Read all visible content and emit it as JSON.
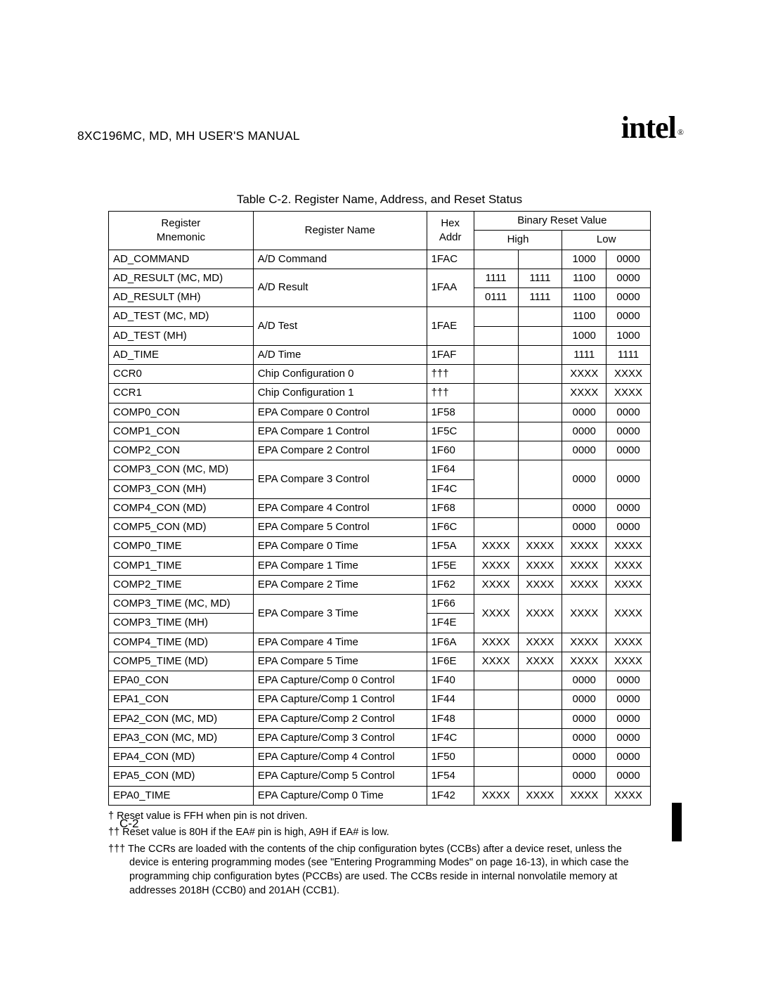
{
  "doc": {
    "header": "8XC196MC, MD, MH USER'S MANUAL",
    "logo_text": "intel",
    "logo_mark": "®"
  },
  "caption": "Table C-2.  Register Name, Address, and    Reset Status",
  "head": {
    "mnemonic": "Register\nMnemonic",
    "name": "Register Name",
    "addr": "Hex\nAddr",
    "brv": "Binary Reset Value",
    "high": "High",
    "low": "Low"
  },
  "rows": [
    {
      "m": [
        "AD_COMMAND"
      ],
      "n": "A/D Command",
      "a": [
        "1FAC"
      ],
      "h1": [
        ""
      ],
      "h2": [
        ""
      ],
      "l1": [
        "1000"
      ],
      "l2": [
        "0000"
      ]
    },
    {
      "m": [
        "AD_RESULT (MC, MD)",
        "AD_RESULT (MH)"
      ],
      "n": "A/D Result",
      "a": [
        "1FAA"
      ],
      "h1": [
        "1111",
        "0111"
      ],
      "h2": [
        "1111",
        "1111"
      ],
      "l1": [
        "1100",
        "1100"
      ],
      "l2": [
        "0000",
        "0000"
      ]
    },
    {
      "m": [
        "AD_TEST (MC, MD)",
        "AD_TEST (MH)"
      ],
      "n": "A/D Test",
      "a": [
        "1FAE"
      ],
      "h1": [
        "",
        ""
      ],
      "h2": [
        "",
        ""
      ],
      "l1": [
        "1100",
        "1000"
      ],
      "l2": [
        "0000",
        "1000"
      ]
    },
    {
      "m": [
        "AD_TIME"
      ],
      "n": "A/D Time",
      "a": [
        "1FAF"
      ],
      "h1": [
        ""
      ],
      "h2": [
        ""
      ],
      "l1": [
        "1111"
      ],
      "l2": [
        "1111"
      ]
    },
    {
      "m": [
        "CCR0"
      ],
      "n": "Chip Configuration 0",
      "a": [
        "†††"
      ],
      "h1": [
        ""
      ],
      "h2": [
        ""
      ],
      "l1": [
        "XXXX"
      ],
      "l2": [
        "XXXX"
      ]
    },
    {
      "m": [
        "CCR1"
      ],
      "n": "Chip Configuration 1",
      "a": [
        "†††"
      ],
      "h1": [
        ""
      ],
      "h2": [
        ""
      ],
      "l1": [
        "XXXX"
      ],
      "l2": [
        "XXXX"
      ]
    },
    {
      "m": [
        "COMP0_CON"
      ],
      "n": "EPA Compare 0 Control",
      "a": [
        "1F58"
      ],
      "h1": [
        ""
      ],
      "h2": [
        ""
      ],
      "l1": [
        "0000"
      ],
      "l2": [
        "0000"
      ]
    },
    {
      "m": [
        "COMP1_CON"
      ],
      "n": "EPA Compare 1 Control",
      "a": [
        "1F5C"
      ],
      "h1": [
        ""
      ],
      "h2": [
        ""
      ],
      "l1": [
        "0000"
      ],
      "l2": [
        "0000"
      ]
    },
    {
      "m": [
        "COMP2_CON"
      ],
      "n": "EPA Compare 2 Control",
      "a": [
        "1F60"
      ],
      "h1": [
        ""
      ],
      "h2": [
        ""
      ],
      "l1": [
        "0000"
      ],
      "l2": [
        "0000"
      ]
    },
    {
      "m": [
        "COMP3_CON (MC, MD)",
        "COMP3_CON (MH)"
      ],
      "n": "EPA Compare 3 Control",
      "a": [
        "1F64",
        "1F4C"
      ],
      "h1": [
        ""
      ],
      "h2": [
        ""
      ],
      "l1": [
        "0000"
      ],
      "l2": [
        "0000"
      ],
      "merge_vals": true
    },
    {
      "m": [
        "COMP4_CON (MD)"
      ],
      "n": "EPA Compare 4 Control",
      "a": [
        "1F68"
      ],
      "h1": [
        ""
      ],
      "h2": [
        ""
      ],
      "l1": [
        "0000"
      ],
      "l2": [
        "0000"
      ]
    },
    {
      "m": [
        "COMP5_CON (MD)"
      ],
      "n": "EPA Compare 5 Control",
      "a": [
        "1F6C"
      ],
      "h1": [
        ""
      ],
      "h2": [
        ""
      ],
      "l1": [
        "0000"
      ],
      "l2": [
        "0000"
      ]
    },
    {
      "m": [
        "COMP0_TIME"
      ],
      "n": "EPA Compare 0 Time",
      "a": [
        "1F5A"
      ],
      "h1": [
        "XXXX"
      ],
      "h2": [
        "XXXX"
      ],
      "l1": [
        "XXXX"
      ],
      "l2": [
        "XXXX"
      ]
    },
    {
      "m": [
        "COMP1_TIME"
      ],
      "n": "EPA Compare 1 Time",
      "a": [
        "1F5E"
      ],
      "h1": [
        "XXXX"
      ],
      "h2": [
        "XXXX"
      ],
      "l1": [
        "XXXX"
      ],
      "l2": [
        "XXXX"
      ]
    },
    {
      "m": [
        "COMP2_TIME"
      ],
      "n": "EPA Compare 2 Time",
      "a": [
        "1F62"
      ],
      "h1": [
        "XXXX"
      ],
      "h2": [
        "XXXX"
      ],
      "l1": [
        "XXXX"
      ],
      "l2": [
        "XXXX"
      ]
    },
    {
      "m": [
        "COMP3_TIME (MC, MD)",
        "COMP3_TIME (MH)"
      ],
      "n": "EPA Compare 3 Time",
      "a": [
        "1F66",
        "1F4E"
      ],
      "h1": [
        "XXXX"
      ],
      "h2": [
        "XXXX"
      ],
      "l1": [
        "XXXX"
      ],
      "l2": [
        "XXXX"
      ],
      "merge_vals": true
    },
    {
      "m": [
        "COMP4_TIME (MD)"
      ],
      "n": "EPA Compare 4 Time",
      "a": [
        "1F6A"
      ],
      "h1": [
        "XXXX"
      ],
      "h2": [
        "XXXX"
      ],
      "l1": [
        "XXXX"
      ],
      "l2": [
        "XXXX"
      ]
    },
    {
      "m": [
        "COMP5_TIME (MD)"
      ],
      "n": "EPA Compare 5 Time",
      "a": [
        "1F6E"
      ],
      "h1": [
        "XXXX"
      ],
      "h2": [
        "XXXX"
      ],
      "l1": [
        "XXXX"
      ],
      "l2": [
        "XXXX"
      ]
    },
    {
      "m": [
        "EPA0_CON"
      ],
      "n": "EPA Capture/Comp 0 Control",
      "a": [
        "1F40"
      ],
      "h1": [
        ""
      ],
      "h2": [
        ""
      ],
      "l1": [
        "0000"
      ],
      "l2": [
        "0000"
      ]
    },
    {
      "m": [
        "EPA1_CON"
      ],
      "n": "EPA Capture/Comp 1 Control",
      "a": [
        "1F44"
      ],
      "h1": [
        ""
      ],
      "h2": [
        ""
      ],
      "l1": [
        "0000"
      ],
      "l2": [
        "0000"
      ]
    },
    {
      "m": [
        "EPA2_CON (MC, MD)"
      ],
      "n": "EPA Capture/Comp 2 Control",
      "a": [
        "1F48"
      ],
      "h1": [
        ""
      ],
      "h2": [
        ""
      ],
      "l1": [
        "0000"
      ],
      "l2": [
        "0000"
      ]
    },
    {
      "m": [
        "EPA3_CON (MC, MD)"
      ],
      "n": "EPA Capture/Comp 3 Control",
      "a": [
        "1F4C"
      ],
      "h1": [
        ""
      ],
      "h2": [
        ""
      ],
      "l1": [
        "0000"
      ],
      "l2": [
        "0000"
      ]
    },
    {
      "m": [
        "EPA4_CON (MD)"
      ],
      "n": "EPA Capture/Comp 4 Control",
      "a": [
        "1F50"
      ],
      "h1": [
        ""
      ],
      "h2": [
        ""
      ],
      "l1": [
        "0000"
      ],
      "l2": [
        "0000"
      ]
    },
    {
      "m": [
        "EPA5_CON (MD)"
      ],
      "n": "EPA Capture/Comp 5 Control",
      "a": [
        "1F54"
      ],
      "h1": [
        ""
      ],
      "h2": [
        ""
      ],
      "l1": [
        "0000"
      ],
      "l2": [
        "0000"
      ]
    },
    {
      "m": [
        "EPA0_TIME"
      ],
      "n": "EPA Capture/Comp 0 Time",
      "a": [
        "1F42"
      ],
      "h1": [
        "XXXX"
      ],
      "h2": [
        "XXXX"
      ],
      "l1": [
        "XXXX"
      ],
      "l2": [
        "XXXX"
      ]
    }
  ],
  "notes": {
    "n1": "†    Reset value is FFH when pin is not driven.",
    "n2": "††   Reset value is 80H if the EA# pin is high, A9H if EA# is low.",
    "n3": "†††  The CCRs are loaded with the contents of the chip configuration bytes (CCBs) after a device reset, unless the device is entering programming modes (see \"Entering Programming Modes\" on page 16-13), in which case the programming chip configuration bytes (PCCBs) are used. The CCBs reside in internal nonvolatile memory at addresses 2018H (CCB0) and 201AH (CCB1)."
  },
  "page_number": "C-2"
}
